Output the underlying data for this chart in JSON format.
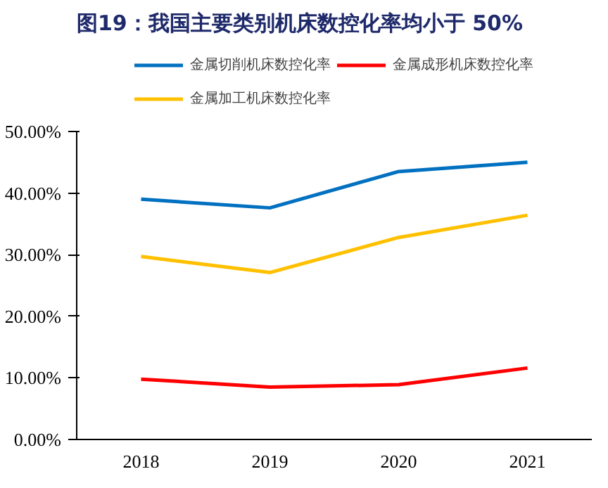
{
  "chart_data": {
    "type": "line",
    "title": "图19：我国主要类别机床数控化率均小于 50%",
    "categories": [
      "2018",
      "2019",
      "2020",
      "2021"
    ],
    "series": [
      {
        "name": "金属切削机床数控化率",
        "color": "#0070c0",
        "values": [
          39.0,
          37.6,
          43.5,
          45.0
        ]
      },
      {
        "name": "金属成形机床数控化率",
        "color": "#ff0000",
        "values": [
          9.8,
          8.5,
          8.9,
          11.6
        ]
      },
      {
        "name": "金属加工机床数控化率",
        "color": "#ffc000",
        "values": [
          29.7,
          27.1,
          32.8,
          36.4
        ]
      }
    ],
    "ylim": [
      0,
      50
    ],
    "yticks": [
      {
        "value": 0,
        "label": "0.00%"
      },
      {
        "value": 10,
        "label": "10.00%"
      },
      {
        "value": 20,
        "label": "20.00%"
      },
      {
        "value": 30,
        "label": "30.00%"
      },
      {
        "value": 40,
        "label": "40.00%"
      },
      {
        "value": 50,
        "label": "50.00%"
      }
    ],
    "grid": false,
    "legend": "top",
    "marker": "none",
    "line_style": "solid"
  }
}
